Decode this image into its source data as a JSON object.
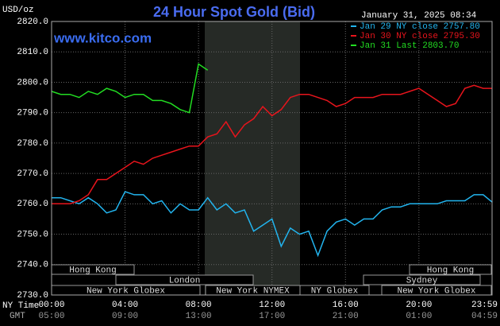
{
  "chart_data": {
    "type": "line",
    "title": "24 Hour Spot Gold (Bid)",
    "timestamp": "January 31, 2025 08:34",
    "watermark": "www.kitco.com",
    "y_label": "USD/oz",
    "x_row_labels": [
      "NY Time",
      "GMT"
    ],
    "x": [
      0,
      0.5,
      1,
      1.5,
      2,
      2.5,
      3,
      3.5,
      4,
      4.5,
      5,
      5.5,
      6,
      6.5,
      7,
      7.5,
      8,
      8.5,
      9,
      9.5,
      10,
      10.5,
      11,
      11.5,
      12,
      12.5,
      13,
      13.5,
      14,
      14.5,
      15,
      15.5,
      16,
      16.5,
      17,
      17.5,
      18,
      18.5,
      19,
      19.5,
      20,
      20.5,
      21,
      21.5,
      22,
      22.5,
      23,
      23.5,
      24
    ],
    "xlim": [
      0,
      23.983
    ],
    "xticks": [
      {
        "value": 0,
        "label": "00:00"
      },
      {
        "value": 4,
        "label": "04:00"
      },
      {
        "value": 8,
        "label": "08:00"
      },
      {
        "value": 12,
        "label": "12:00"
      },
      {
        "value": 16,
        "label": "16:00"
      },
      {
        "value": 20,
        "label": "20:00"
      },
      {
        "value": 23.983,
        "label": "23:59"
      }
    ],
    "gmt_labels": [
      "05:00",
      "09:00",
      "13:00",
      "17:00",
      "21:00",
      "01:00",
      "04:59"
    ],
    "ylim": [
      2730,
      2820
    ],
    "yticks": [
      {
        "value": 2730,
        "label": "2730.0"
      },
      {
        "value": 2740,
        "label": "2740.0"
      },
      {
        "value": 2750,
        "label": "2750.0"
      },
      {
        "value": 2760,
        "label": "2760.0"
      },
      {
        "value": 2770,
        "label": "2770.0"
      },
      {
        "value": 2780,
        "label": "2780.0"
      },
      {
        "value": 2790,
        "label": "2790.0"
      },
      {
        "value": 2800,
        "label": "2800.0"
      },
      {
        "value": 2810,
        "label": "2810.0"
      },
      {
        "value": 2820,
        "label": "2820.0"
      }
    ],
    "grid": true,
    "sessions": [
      "Hong Kong",
      "London",
      "New York Globex",
      "New York NYMEX",
      "NY Globex",
      "Hong Kong",
      "Sydney",
      "New York Globex"
    ],
    "series": [
      {
        "name": "Jan 29 NY close 2757.80",
        "color": "#22b4ee",
        "values": [
          2762,
          2762,
          2761,
          2760,
          2762,
          2760,
          2757,
          2758,
          2764,
          2763,
          2763,
          2760,
          2761,
          2757,
          2760,
          2758,
          2758,
          2762,
          2758,
          2760,
          2757,
          2758,
          2751,
          2753,
          2755,
          2746,
          2752,
          2750,
          2751,
          2743,
          2751,
          2754,
          2755,
          2753,
          2755,
          2755,
          2758,
          2759,
          2759,
          2760,
          2760,
          2760,
          2760,
          2761,
          2761,
          2761,
          2763,
          2763,
          2760.5
        ]
      },
      {
        "name": "Jan 30 NY close 2795.30",
        "color": "#e8141c",
        "values": [
          2760,
          2760,
          2760,
          2761,
          2763,
          2768,
          2768,
          2770,
          2772,
          2774,
          2773,
          2775,
          2776,
          2777,
          2778,
          2779,
          2779,
          2782,
          2783,
          2787,
          2782,
          2786,
          2788,
          2792,
          2789,
          2791,
          2795,
          2796,
          2796,
          2795,
          2794,
          2792,
          2793,
          2795,
          2795,
          2795,
          2796,
          2796,
          2796,
          2797,
          2798,
          2796,
          2794,
          2792,
          2793,
          2798,
          2799,
          2798,
          2798
        ]
      },
      {
        "name": "Jan 31 Last 2803.70",
        "color": "#22dd22",
        "values": [
          2797,
          2796,
          2796,
          2795,
          2797,
          2796,
          2798,
          2797,
          2795,
          2796,
          2796,
          2794,
          2794,
          2793,
          2791,
          2790,
          2806,
          2804,
          null,
          null,
          null,
          null,
          null,
          null,
          null,
          null,
          null,
          null,
          null,
          null,
          null,
          null,
          null,
          null,
          null,
          null,
          null,
          null,
          null,
          null,
          null,
          null,
          null,
          null,
          null,
          null,
          null,
          null,
          null
        ]
      }
    ]
  }
}
